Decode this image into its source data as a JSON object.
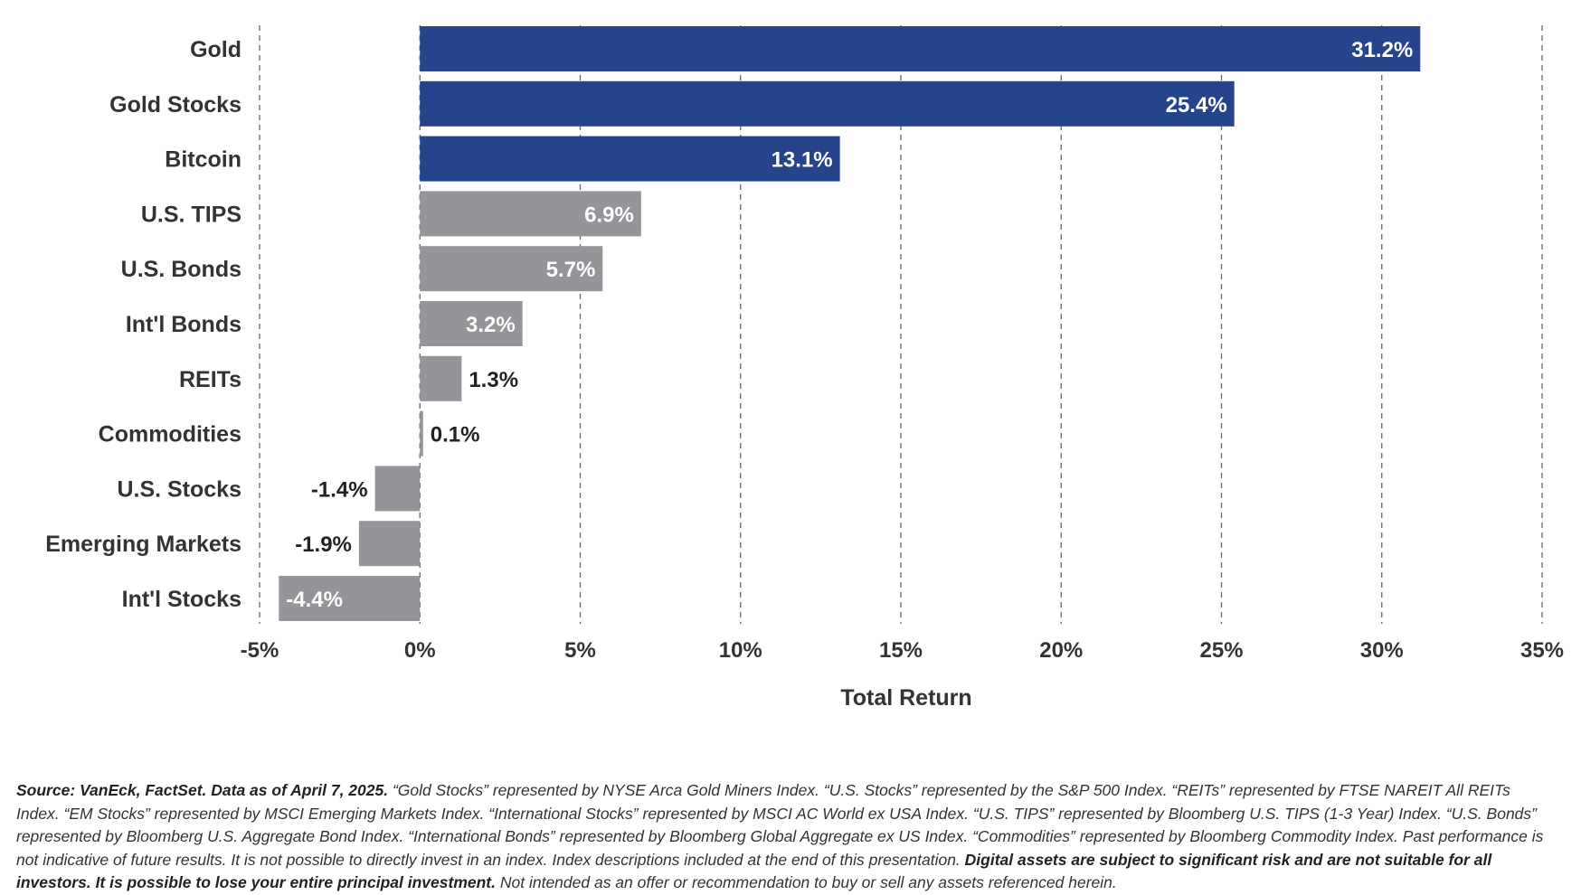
{
  "chart_data": {
    "type": "bar",
    "orientation": "horizontal",
    "categories": [
      "Gold",
      "Gold Stocks",
      "Bitcoin",
      "U.S. TIPS",
      "U.S. Bonds",
      "Int'l Bonds",
      "REITs",
      "Commodities",
      "U.S. Stocks",
      "Emerging Markets",
      "Int'l Stocks"
    ],
    "values": [
      31.2,
      25.4,
      13.1,
      6.9,
      5.7,
      3.2,
      1.3,
      0.1,
      -1.4,
      -1.9,
      -4.4
    ],
    "data_labels": [
      "31.2%",
      "25.4%",
      "13.1%",
      "6.9%",
      "5.7%",
      "3.2%",
      "1.3%",
      "0.1%",
      "-1.4%",
      "-1.9%",
      "-4.4%"
    ],
    "highlighted": [
      true,
      true,
      true,
      false,
      false,
      false,
      false,
      false,
      false,
      false,
      false
    ],
    "xlabel": "Total Return",
    "ylabel": "",
    "xlim": [
      -5,
      35
    ],
    "ticks": [
      -5,
      0,
      5,
      10,
      15,
      20,
      25,
      30,
      35
    ],
    "tick_labels": [
      "-5%",
      "0%",
      "5%",
      "10%",
      "15%",
      "20%",
      "25%",
      "30%",
      "35%"
    ],
    "grid": "vertical-dashed",
    "colors": {
      "highlight": "#26448c",
      "default": "#939598",
      "grid": "#666666",
      "label_inside": "#ffffff",
      "label_outside": "#222222"
    }
  },
  "footnote": {
    "source_bold": "Source: VanEck, FactSet. Data as of April 7, 2025.",
    "body": " “Gold Stocks” represented by NYSE Arca Gold Miners Index. “U.S. Stocks” represented by the S&P 500 Index. “REITs” represented by FTSE NAREIT All REITs Index. “EM Stocks” represented by MSCI Emerging Markets Index. “International Stocks” represented by MSCI AC World ex USA Index. “U.S. TIPS” represented by Bloomberg U.S. TIPS (1-3 Year) Index. “U.S. Bonds” represented by Bloomberg U.S. Aggregate Bond Index. “International Bonds” represented by Bloomberg Global Aggregate ex US Index. “Commodities” represented by Bloomberg Commodity Index. Past performance is not indicative of future results. It is not possible to directly invest in an index. Index descriptions included at the end of this presentation. ",
    "warning_bold": "Digital assets are subject to significant risk and are not suitable for all investors. It is possible to lose your entire principal investment.",
    "tail": " Not intended as an offer or recommendation to buy or sell any assets referenced herein."
  }
}
